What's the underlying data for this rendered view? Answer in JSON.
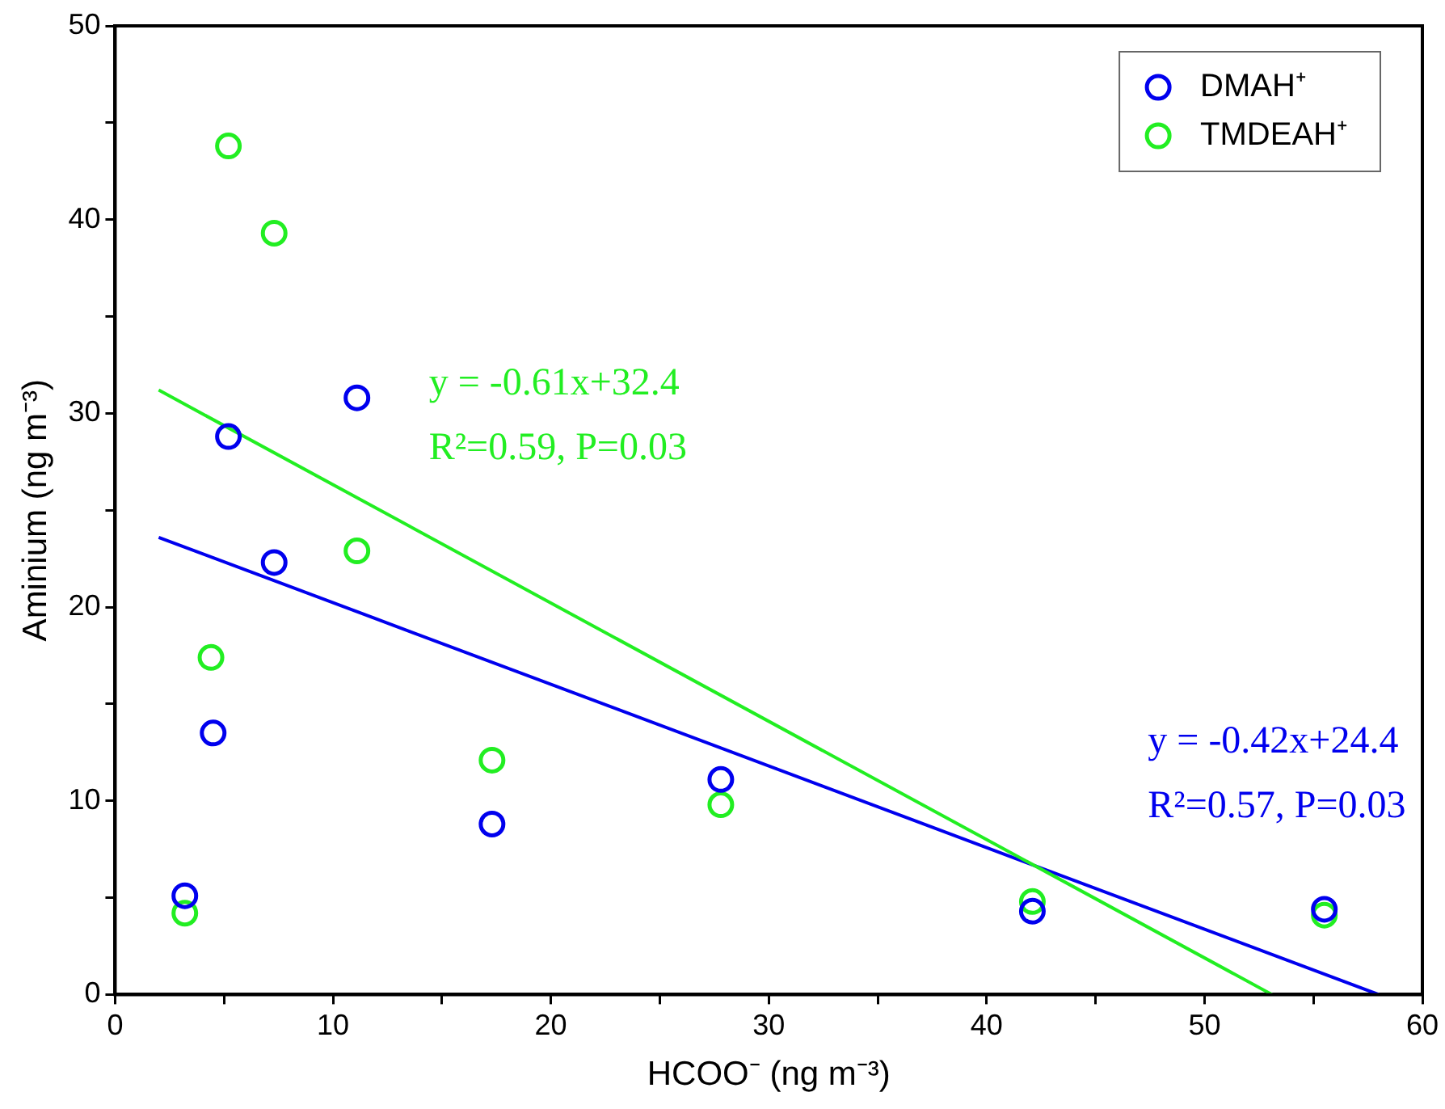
{
  "chart_data": {
    "type": "scatter",
    "xlabel": "HCOO⁻ (ng m⁻³)",
    "ylabel": "Aminium (ng m⁻³)",
    "xlim": [
      0,
      60
    ],
    "ylim": [
      0,
      50
    ],
    "xticks": [
      0,
      {
        "value": 5,
        "label": null
      },
      10,
      {
        "value": 15,
        "label": null
      },
      20,
      {
        "value": 25,
        "label": null
      },
      30,
      {
        "value": 35,
        "label": null
      },
      40,
      {
        "value": 45,
        "label": null
      },
      50,
      {
        "value": 55,
        "label": null
      },
      60
    ],
    "yticks": [
      0,
      {
        "value": 5,
        "label": null
      },
      10,
      {
        "value": 15,
        "label": null
      },
      20,
      {
        "value": 25,
        "label": null
      },
      30,
      {
        "value": 35,
        "label": null
      },
      40,
      {
        "value": 45,
        "label": null
      },
      50
    ],
    "grid": false,
    "legend": "top right",
    "series": [
      {
        "name": "DMAH⁺",
        "marker": "circle",
        "color": "#0000ee",
        "x": [
          3.2,
          4.5,
          5.2,
          7.3,
          11.1,
          17.3,
          27.8,
          42.1,
          55.5
        ],
        "values": [
          5.1,
          13.5,
          28.8,
          22.3,
          30.8,
          8.8,
          11.1,
          4.3,
          4.4
        ]
      },
      {
        "name": "TMDEAH⁺",
        "marker": "circle",
        "color": "#22ee22",
        "x": [
          3.2,
          4.4,
          5.2,
          7.3,
          11.1,
          17.3,
          27.8,
          42.1,
          55.5
        ],
        "values": [
          4.2,
          17.4,
          43.8,
          39.3,
          22.9,
          12.1,
          9.8,
          4.8,
          4.1
        ]
      },
      {
        "type": "line",
        "color": "#22ee22",
        "x": [
          2,
          53.1
        ],
        "values": [
          31.2,
          0
        ]
      },
      {
        "type": "line",
        "color": "#0000ee",
        "x": [
          2,
          58
        ],
        "values": [
          23.6,
          0
        ]
      }
    ],
    "annotations": [
      "y = -0.61x+32.4",
      "R²=0.59, P=0.03",
      "y = -0.42x+24.4",
      "R²=0.57, P=0.03"
    ]
  }
}
